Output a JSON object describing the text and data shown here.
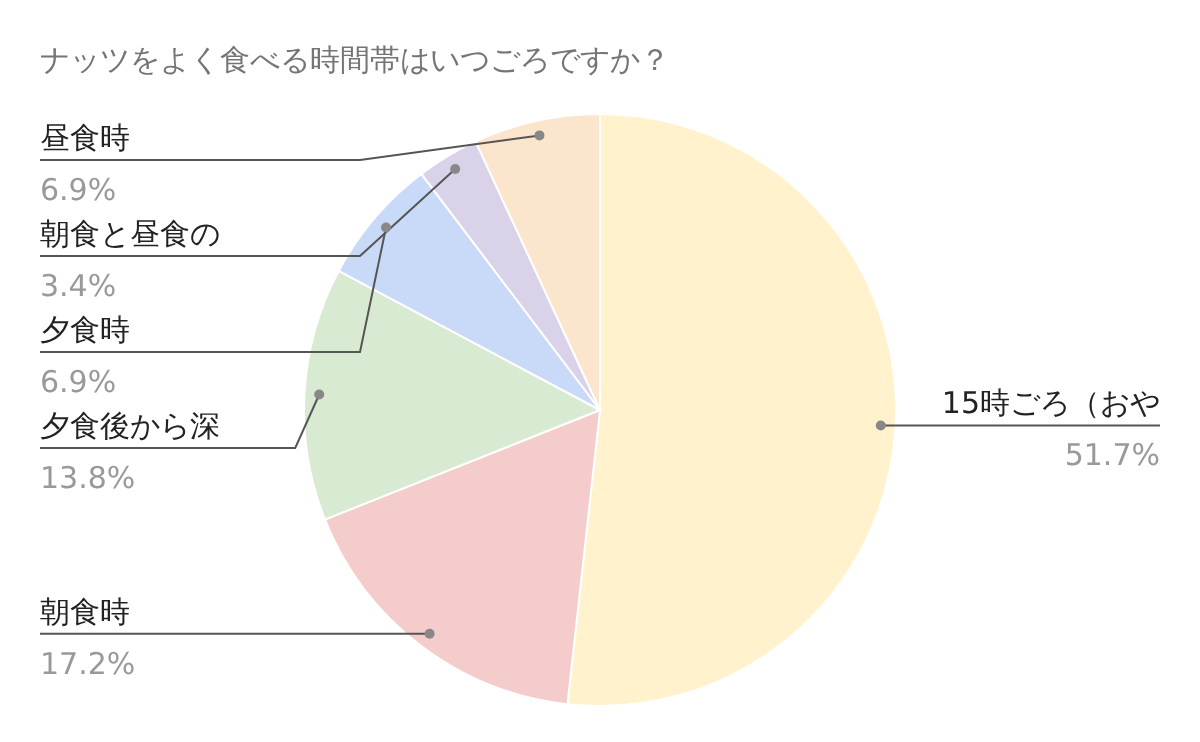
{
  "chart_data": {
    "type": "pie",
    "title": "ナッツをよく食べる時間帯はいつごろですか？",
    "categories": [
      "15時ごろ（おや",
      "朝食時",
      "夕食後から深",
      "夕食時",
      "朝食と昼食の",
      "昼食時"
    ],
    "values": [
      51.7,
      17.2,
      13.8,
      6.9,
      3.4,
      6.9
    ],
    "colors": [
      "#fff2cc",
      "#f4cccc",
      "#d9ead3",
      "#c9daf8",
      "#d9d2e9",
      "#fce5cd"
    ],
    "value_labels": [
      "51.7%",
      "17.2%",
      "13.8%",
      "6.9%",
      "3.4%",
      "6.9%"
    ]
  }
}
